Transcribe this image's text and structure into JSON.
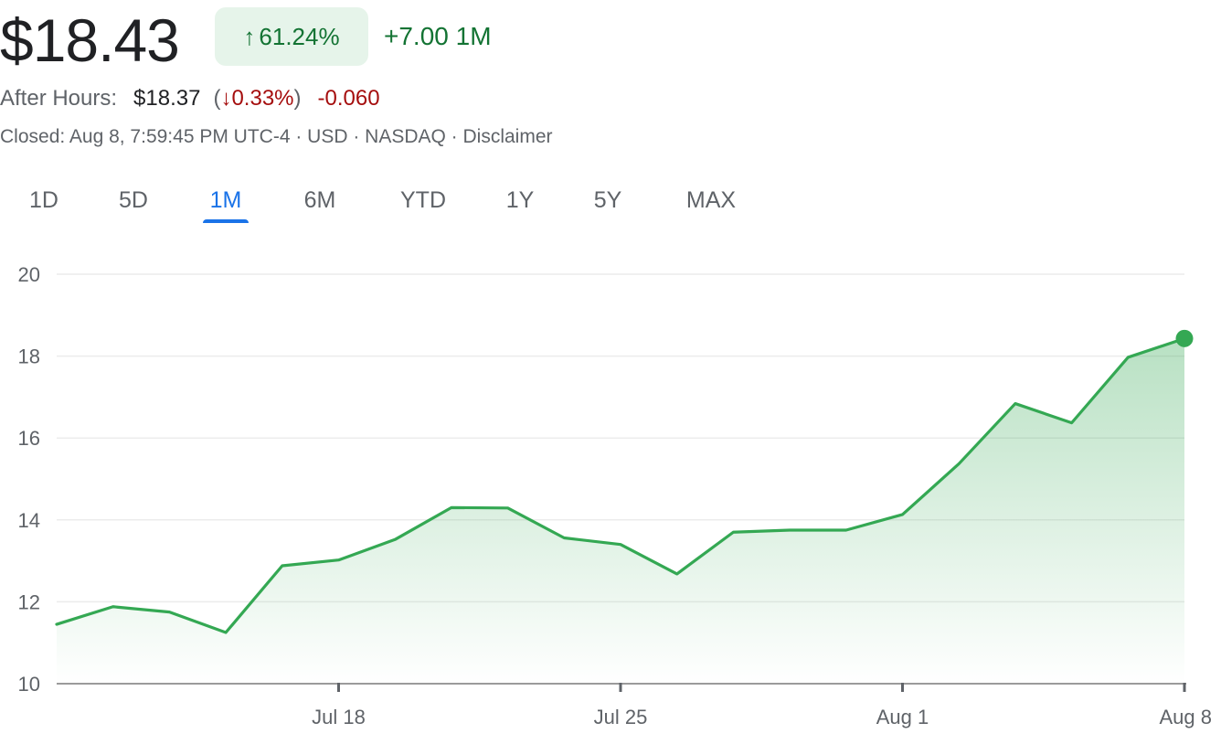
{
  "quote": {
    "price": "$18.43",
    "change_arrow": "↑",
    "change_pct": "61.24%",
    "change_abs": "+7.00 1M",
    "after_hours_label": "After Hours:",
    "after_hours_price": "$18.37",
    "after_hours_arrow": "↓",
    "after_hours_pct": "0.33%",
    "after_hours_abs": "-0.060",
    "status": "Closed: Aug 8, 7:59:45 PM UTC-4 · USD · NASDAQ · Disclaimer"
  },
  "tabs": [
    {
      "label": "1D",
      "active": false
    },
    {
      "label": "5D",
      "active": false
    },
    {
      "label": "1M",
      "active": true
    },
    {
      "label": "6M",
      "active": false
    },
    {
      "label": "YTD",
      "active": false
    },
    {
      "label": "1Y",
      "active": false
    },
    {
      "label": "5Y",
      "active": false
    },
    {
      "label": "MAX",
      "active": false
    }
  ],
  "colors": {
    "up_green": "#137333",
    "line_green": "#34a853",
    "down_red": "#a50e0e",
    "accent_blue": "#1a73e8"
  },
  "chart_data": {
    "type": "area",
    "x": [
      "Jul 11",
      "Jul 12",
      "Jul 15",
      "Jul 16",
      "Jul 17",
      "Jul 18",
      "Jul 19",
      "Jul 22",
      "Jul 23",
      "Jul 24",
      "Jul 25",
      "Jul 26",
      "Jul 29",
      "Jul 30",
      "Jul 31",
      "Aug 1",
      "Aug 2",
      "Aug 5",
      "Aug 6",
      "Aug 7",
      "Aug 8"
    ],
    "values": [
      11.45,
      11.88,
      11.75,
      11.25,
      12.88,
      13.02,
      13.52,
      14.3,
      14.29,
      13.56,
      13.4,
      12.68,
      13.7,
      13.75,
      13.75,
      14.13,
      15.37,
      16.84,
      16.37,
      17.97,
      18.43
    ],
    "xtick_labels": [
      "Jul 18",
      "Jul 25",
      "Aug 1",
      "Aug 8"
    ],
    "xtick_indices": [
      5,
      10,
      15,
      20
    ],
    "yticks": [
      10,
      12,
      14,
      16,
      18,
      20
    ],
    "ylim": [
      10,
      20
    ],
    "grid": true
  }
}
